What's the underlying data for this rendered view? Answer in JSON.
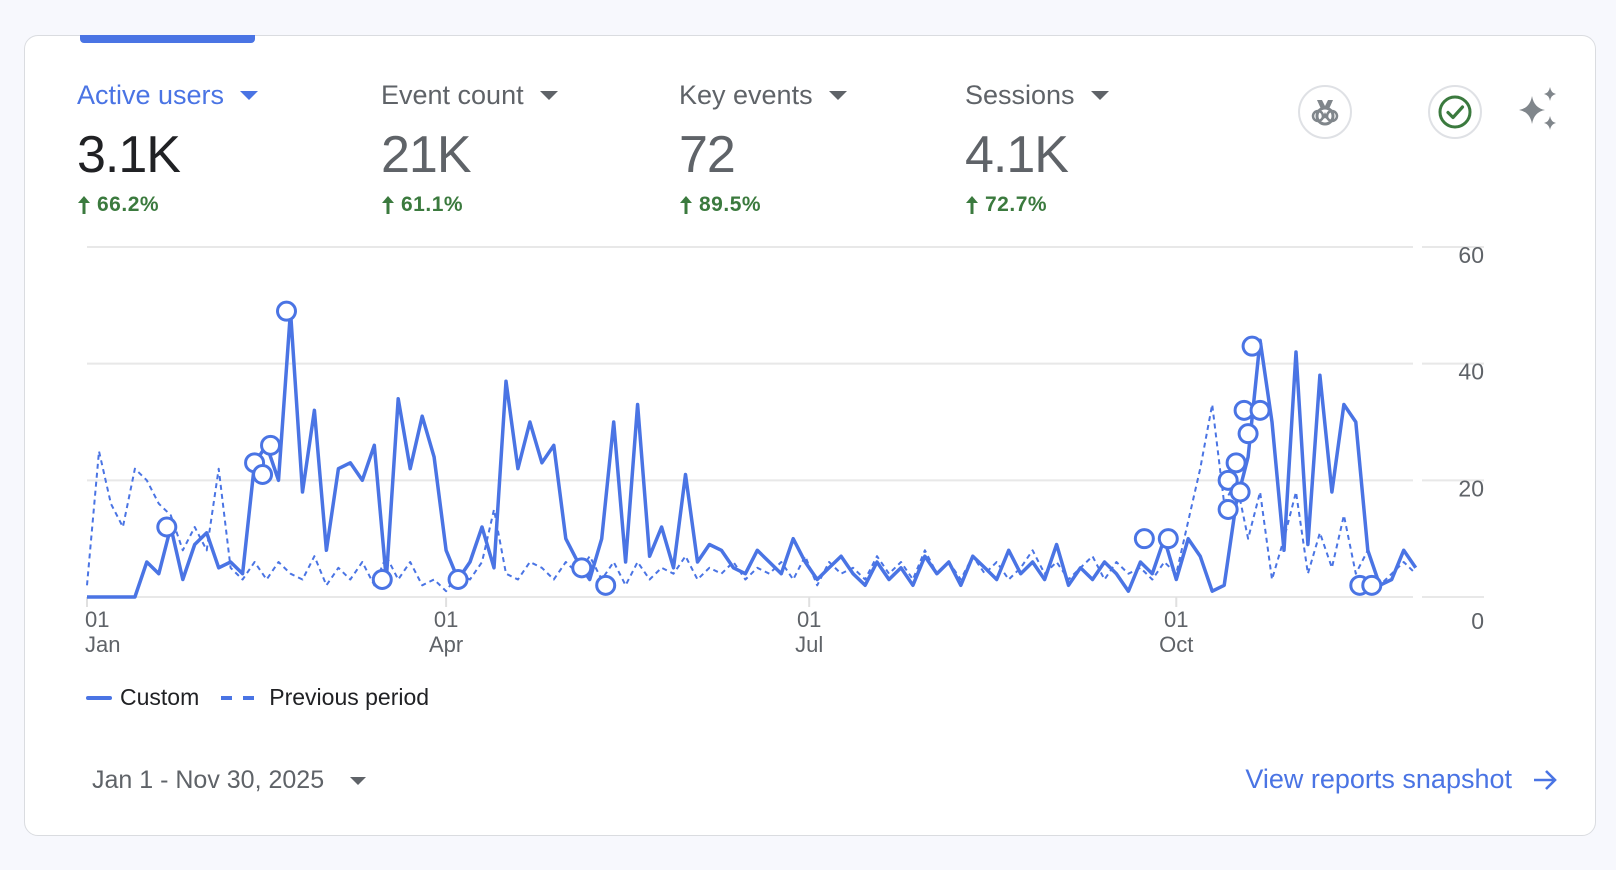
{
  "metrics": [
    {
      "label": "Active users",
      "value": "3.1K",
      "change": "66.2%",
      "active": true
    },
    {
      "label": "Event count",
      "value": "21K",
      "change": "61.1%",
      "active": false
    },
    {
      "label": "Key events",
      "value": "72",
      "change": "89.5%",
      "active": false
    },
    {
      "label": "Sessions",
      "value": "4.1K",
      "change": "72.7%",
      "active": false
    }
  ],
  "icons": [
    "medal-icon",
    "check-circle-icon",
    "sparkle-icon"
  ],
  "colors": {
    "accent": "#4a74e4",
    "positive": "#3b7a3e",
    "muted": "#5f6368"
  },
  "legend": {
    "current": "Custom",
    "previous": "Previous period"
  },
  "date_range": "Jan 1 - Nov 30, 2025",
  "link": "View reports snapshot",
  "chart_data": {
    "type": "line",
    "x_start": "2025-01-01",
    "x_step_days": 3,
    "x_ticks": [
      {
        "day": "01",
        "month": "Jan",
        "date": "2025-01-01"
      },
      {
        "day": "01",
        "month": "Apr",
        "date": "2025-04-01"
      },
      {
        "day": "01",
        "month": "Jul",
        "date": "2025-07-01"
      },
      {
        "day": "01",
        "month": "Oct",
        "date": "2025-10-01"
      }
    ],
    "y_ticks": [
      "0",
      "20",
      "40",
      "60"
    ],
    "ylim": [
      0,
      60
    ],
    "y_axis_side": "right",
    "grid": true,
    "legend_position": "bottom-left",
    "series": [
      {
        "name": "Custom",
        "style": "solid",
        "values": [
          0,
          0,
          0,
          0,
          0,
          6,
          4,
          12,
          3,
          9,
          11,
          5,
          6,
          4,
          23,
          26,
          20,
          49,
          18,
          32,
          8,
          22,
          23,
          20,
          26,
          3,
          34,
          22,
          31,
          24,
          8,
          3,
          6,
          12,
          5,
          37,
          22,
          30,
          23,
          26,
          10,
          6,
          3,
          10,
          30,
          6,
          33,
          7,
          12,
          5,
          21,
          6,
          9,
          8,
          5,
          4,
          8,
          6,
          4,
          10,
          6,
          3,
          5,
          7,
          4,
          2,
          6,
          3,
          5,
          2,
          7,
          4,
          6,
          2,
          7,
          5,
          3,
          8,
          4,
          6,
          3,
          9,
          2,
          5,
          3,
          6,
          4,
          1,
          6,
          4,
          10,
          3,
          10,
          7,
          1,
          2,
          16,
          24,
          44,
          30,
          8,
          42,
          9,
          38,
          18,
          33,
          30,
          8,
          2,
          3,
          8,
          5
        ]
      },
      {
        "name": "Previous period",
        "style": "dashed",
        "values": [
          2,
          25,
          16,
          12,
          22,
          20,
          16,
          14,
          8,
          12,
          8,
          22,
          5,
          3,
          6,
          3,
          6,
          4,
          3,
          7,
          2,
          5,
          3,
          6,
          2,
          7,
          3,
          6,
          2,
          3,
          1,
          4,
          3,
          6,
          15,
          4,
          3,
          6,
          5,
          3,
          6,
          4,
          7,
          3,
          6,
          2,
          6,
          3,
          5,
          4,
          7,
          3,
          5,
          4,
          6,
          3,
          5,
          4,
          6,
          3,
          7,
          2,
          6,
          4,
          5,
          3,
          7,
          4,
          6,
          3,
          8,
          4,
          6,
          3,
          7,
          4,
          6,
          3,
          5,
          8,
          4,
          6,
          3,
          5,
          7,
          3,
          6,
          4,
          5,
          3,
          6,
          4,
          13,
          22,
          33,
          16,
          20,
          10,
          18,
          3,
          10,
          18,
          4,
          11,
          5,
          14,
          4,
          8,
          2,
          4,
          6,
          4
        ]
      }
    ],
    "annotations": [
      {
        "date": "2025-01-21",
        "value": 12
      },
      {
        "date": "2025-02-12",
        "value": 23
      },
      {
        "date": "2025-02-14",
        "value": 21
      },
      {
        "date": "2025-02-16",
        "value": 26
      },
      {
        "date": "2025-02-20",
        "value": 49
      },
      {
        "date": "2025-03-16",
        "value": 3
      },
      {
        "date": "2025-04-04",
        "value": 3
      },
      {
        "date": "2025-05-05",
        "value": 5
      },
      {
        "date": "2025-05-11",
        "value": 2
      },
      {
        "date": "2025-09-23",
        "value": 10
      },
      {
        "date": "2025-09-29",
        "value": 10
      },
      {
        "date": "2025-10-14",
        "value": 15
      },
      {
        "date": "2025-10-14",
        "value": 20
      },
      {
        "date": "2025-10-16",
        "value": 23
      },
      {
        "date": "2025-10-17",
        "value": 18
      },
      {
        "date": "2025-10-18",
        "value": 32
      },
      {
        "date": "2025-10-19",
        "value": 28
      },
      {
        "date": "2025-10-20",
        "value": 43
      },
      {
        "date": "2025-10-22",
        "value": 32
      },
      {
        "date": "2025-11-16",
        "value": 2
      },
      {
        "date": "2025-11-19",
        "value": 2
      }
    ]
  }
}
